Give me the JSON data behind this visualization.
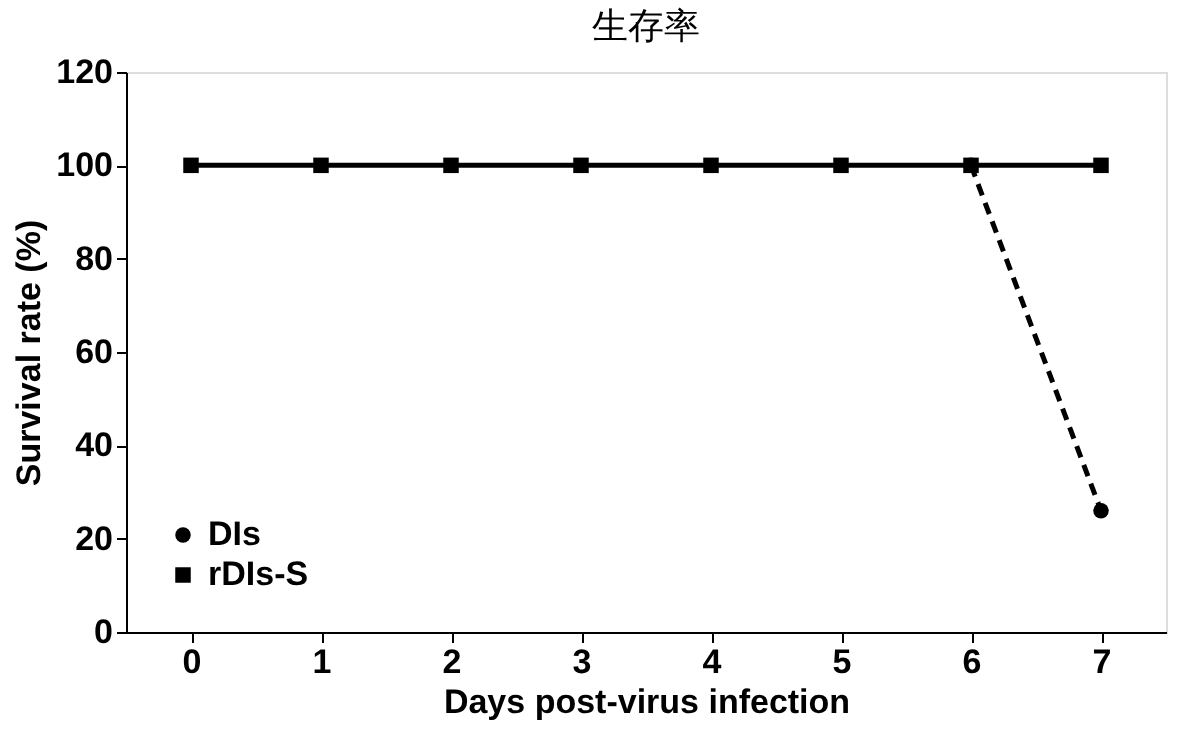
{
  "chart_data": {
    "type": "line",
    "title": "生存率",
    "xlabel": "Days post-virus infection",
    "ylabel": "Survival rate (%)",
    "categories": [
      "0",
      "1",
      "2",
      "3",
      "4",
      "5",
      "6",
      "7"
    ],
    "series": [
      {
        "name": "DIs",
        "color": "#000000",
        "marker": "circle",
        "line_style": "dashed",
        "values": [
          null,
          null,
          null,
          null,
          null,
          null,
          100,
          26
        ]
      },
      {
        "name": "rDIs-S",
        "color": "#000000",
        "marker": "square",
        "line_style": "solid",
        "values": [
          100,
          100,
          100,
          100,
          100,
          100,
          100,
          100
        ]
      }
    ],
    "ylim": [
      0,
      120
    ],
    "yticks": [
      0,
      20,
      40,
      60,
      80,
      100,
      120
    ],
    "grid": false,
    "legend": "bottom left"
  }
}
